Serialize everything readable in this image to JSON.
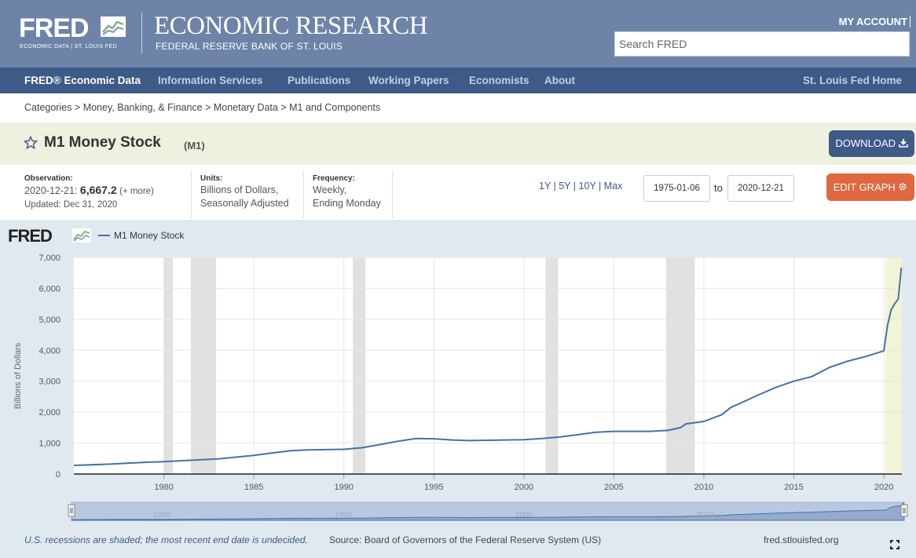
{
  "header": {
    "logo_text": "FRED",
    "logo_sub": "ECONOMIC DATA  |  ST. LOUIS FED",
    "title": "ECONOMIC RESEARCH",
    "subtitle": "FEDERAL RESERVE BANK OF ST. LOUIS",
    "my_account": "MY ACCOUNT",
    "search_placeholder": "Search FRED",
    "bg_color": "#6d84a8"
  },
  "nav": {
    "items": [
      "FRED® Economic Data",
      "Information Services",
      "Publications",
      "Working Papers",
      "Economists",
      "About"
    ],
    "right": "St. Louis Fed Home",
    "bg_color": "#3e5a87"
  },
  "breadcrumb": "Categories > Money, Banking, & Finance > Monetary Data > M1 and Components",
  "series": {
    "title": "M1 Money Stock",
    "id": "(M1)",
    "download_label": "DOWNLOAD",
    "edit_label": "EDIT GRAPH"
  },
  "info": {
    "observation_label": "Observation:",
    "observation_date": "2020-12-21:",
    "observation_value": "6,667.2",
    "observation_more": "(+ more)",
    "updated": "Updated: Dec 31, 2020",
    "units_label": "Units:",
    "units_line1": "Billions of Dollars,",
    "units_line2": "Seasonally Adjusted",
    "frequency_label": "Frequency:",
    "frequency_line1": "Weekly,",
    "frequency_line2": "Ending Monday",
    "ranges": "1Y | 5Y | 10Y | Max",
    "start_date": "1975-01-06",
    "to_label": "to",
    "end_date": "2020-12-21"
  },
  "chart_data": {
    "type": "line",
    "logo": "FRED",
    "series": [
      {
        "name": "M1 Money Stock",
        "color": "#4572a7",
        "x": [
          1975.0,
          1977,
          1979,
          1980,
          1981,
          1983,
          1985,
          1986,
          1987,
          1988,
          1989,
          1990,
          1991,
          1992,
          1993,
          1994,
          1995,
          1996,
          1997,
          1998,
          1999,
          2000,
          2001,
          2002,
          2003,
          2004,
          2005,
          2006,
          2007,
          2008,
          2008.7,
          2009,
          2010,
          2011,
          2011.5,
          2012,
          2013,
          2014,
          2015,
          2016,
          2017,
          2018,
          2019,
          2020.0,
          2020.2,
          2020.4,
          2020.6,
          2020.8,
          2020.97
        ],
        "values": [
          280,
          320,
          380,
          400,
          430,
          490,
          600,
          680,
          750,
          780,
          790,
          800,
          850,
          950,
          1060,
          1150,
          1140,
          1100,
          1080,
          1090,
          1100,
          1110,
          1150,
          1200,
          1270,
          1350,
          1380,
          1380,
          1380,
          1410,
          1500,
          1620,
          1700,
          1920,
          2150,
          2280,
          2550,
          2800,
          3000,
          3150,
          3450,
          3650,
          3800,
          3980,
          4800,
          5300,
          5500,
          5650,
          6667.2
        ]
      }
    ],
    "recessions": [
      [
        1980.0,
        1980.5
      ],
      [
        1981.5,
        1982.9
      ],
      [
        1990.5,
        1991.2
      ],
      [
        2001.2,
        2001.9
      ],
      [
        2007.9,
        2009.5
      ]
    ],
    "recent_shading": [
      2020.1,
      2021
    ],
    "xlim": [
      1975,
      2021
    ],
    "ylim": [
      0,
      7000
    ],
    "x_ticks": [
      "1980",
      "1985",
      "1990",
      "1995",
      "2000",
      "2005",
      "2010",
      "2015",
      "2020"
    ],
    "y_ticks": [
      "0",
      "1,000",
      "2,000",
      "3,000",
      "4,000",
      "5,000",
      "6,000",
      "7,000"
    ],
    "navigator_ticks": [
      "1980",
      "1990",
      "2000",
      "2010"
    ],
    "ylabel": "Billions of Dollars",
    "grid": true,
    "legend": "top-left"
  },
  "footer": {
    "note": "U.S. recessions are shaded; the most recent end date is undecided.",
    "source": "Source: Board of Governors of the Federal Reserve System (US)",
    "site": "fred.stlouisfed.org"
  }
}
